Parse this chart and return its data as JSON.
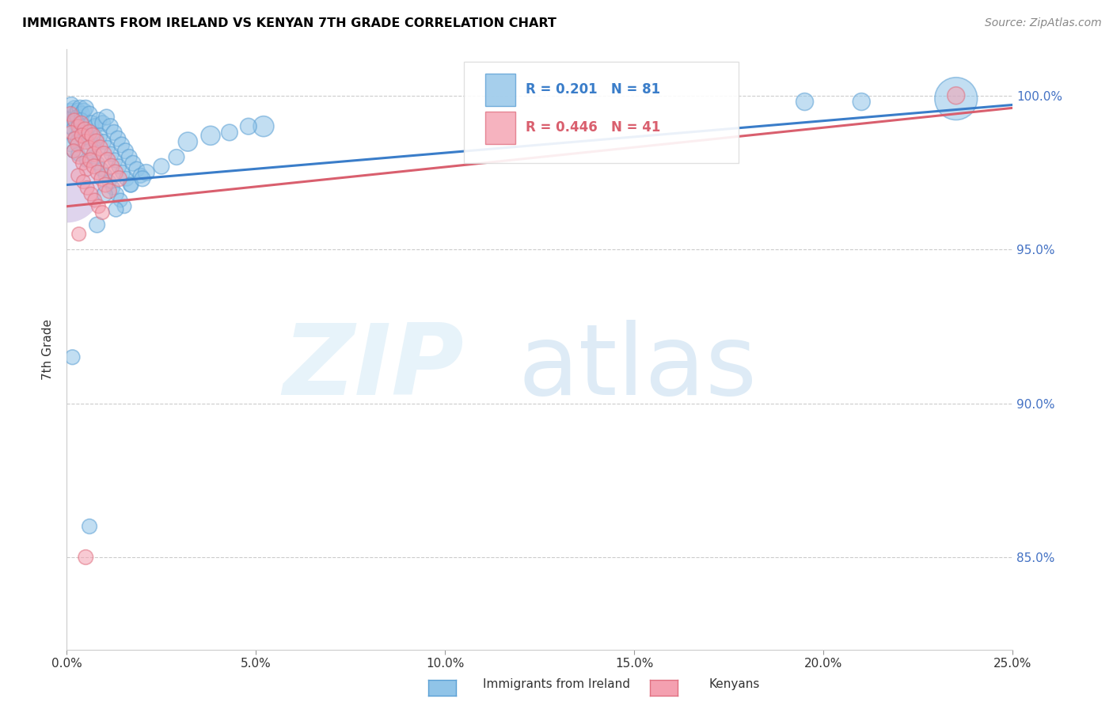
{
  "title": "IMMIGRANTS FROM IRELAND VS KENYAN 7TH GRADE CORRELATION CHART",
  "source": "Source: ZipAtlas.com",
  "ylabel": "7th Grade",
  "legend_blue_label": "Immigrants from Ireland",
  "legend_pink_label": "Kenyans",
  "r_blue": 0.201,
  "n_blue": 81,
  "r_pink": 0.446,
  "n_pink": 41,
  "blue_color": "#90c4e8",
  "pink_color": "#f4a0b0",
  "blue_line_color": "#3a7dc9",
  "pink_line_color": "#d95f6e",
  "blue_edge_color": "#5a9fd4",
  "pink_edge_color": "#e07080",
  "xlim": [
    0.0,
    25.0
  ],
  "ylim": [
    82.0,
    101.5
  ],
  "ytick_values": [
    85.0,
    90.0,
    95.0,
    100.0
  ],
  "xtick_values": [
    0.0,
    5.0,
    10.0,
    15.0,
    20.0,
    25.0
  ],
  "blue_points": [
    [
      0.1,
      99.5
    ],
    [
      0.2,
      99.6
    ],
    [
      0.15,
      99.3
    ],
    [
      0.25,
      99.4
    ],
    [
      0.18,
      99.2
    ],
    [
      0.12,
      99.7
    ],
    [
      0.3,
      99.5
    ],
    [
      0.22,
      99.1
    ],
    [
      0.08,
      99.0
    ],
    [
      0.35,
      99.6
    ],
    [
      0.28,
      99.3
    ],
    [
      0.16,
      98.9
    ],
    [
      0.4,
      99.4
    ],
    [
      0.45,
      99.5
    ],
    [
      0.5,
      99.6
    ],
    [
      0.32,
      98.8
    ],
    [
      0.2,
      98.6
    ],
    [
      0.1,
      98.4
    ],
    [
      0.38,
      99.2
    ],
    [
      0.6,
      99.4
    ],
    [
      0.28,
      98.5
    ],
    [
      0.48,
      99.0
    ],
    [
      0.65,
      99.1
    ],
    [
      0.42,
      98.7
    ],
    [
      0.18,
      98.2
    ],
    [
      0.5,
      98.8
    ],
    [
      0.58,
      98.6
    ],
    [
      0.75,
      99.0
    ],
    [
      0.68,
      98.4
    ],
    [
      0.3,
      98.1
    ],
    [
      0.85,
      99.2
    ],
    [
      0.95,
      99.1
    ],
    [
      0.6,
      98.2
    ],
    [
      0.78,
      98.6
    ],
    [
      0.52,
      97.9
    ],
    [
      1.05,
      99.3
    ],
    [
      0.88,
      98.7
    ],
    [
      0.72,
      98.0
    ],
    [
      1.15,
      99.0
    ],
    [
      0.98,
      98.5
    ],
    [
      0.82,
      97.8
    ],
    [
      1.25,
      98.8
    ],
    [
      1.08,
      98.3
    ],
    [
      0.92,
      97.6
    ],
    [
      1.35,
      98.6
    ],
    [
      1.18,
      98.1
    ],
    [
      1.02,
      97.4
    ],
    [
      1.45,
      98.4
    ],
    [
      1.28,
      97.9
    ],
    [
      1.12,
      97.2
    ],
    [
      1.55,
      98.2
    ],
    [
      1.38,
      97.7
    ],
    [
      1.22,
      97.0
    ],
    [
      1.65,
      98.0
    ],
    [
      1.48,
      97.5
    ],
    [
      1.32,
      96.8
    ],
    [
      1.75,
      97.8
    ],
    [
      1.58,
      97.3
    ],
    [
      1.42,
      96.6
    ],
    [
      1.85,
      97.6
    ],
    [
      1.68,
      97.1
    ],
    [
      1.52,
      96.4
    ],
    [
      1.95,
      97.4
    ],
    [
      3.2,
      98.5
    ],
    [
      3.8,
      98.7
    ],
    [
      5.2,
      99.0
    ],
    [
      0.15,
      91.5
    ],
    [
      2.1,
      97.5
    ],
    [
      0.8,
      95.8
    ],
    [
      1.0,
      96.8
    ],
    [
      1.3,
      96.3
    ],
    [
      1.7,
      97.1
    ],
    [
      2.0,
      97.3
    ],
    [
      2.5,
      97.7
    ],
    [
      2.9,
      98.0
    ],
    [
      4.3,
      98.8
    ],
    [
      4.8,
      99.0
    ],
    [
      19.5,
      99.8
    ],
    [
      23.5,
      99.9
    ],
    [
      0.6,
      86.0
    ],
    [
      21.0,
      99.8
    ]
  ],
  "pink_points": [
    [
      0.1,
      99.4
    ],
    [
      0.2,
      99.2
    ],
    [
      0.3,
      99.0
    ],
    [
      0.12,
      98.8
    ],
    [
      0.38,
      99.1
    ],
    [
      0.22,
      98.6
    ],
    [
      0.28,
      98.4
    ],
    [
      0.48,
      98.9
    ],
    [
      0.4,
      98.7
    ],
    [
      0.18,
      98.2
    ],
    [
      0.5,
      98.5
    ],
    [
      0.6,
      98.8
    ],
    [
      0.32,
      98.0
    ],
    [
      0.68,
      98.7
    ],
    [
      0.42,
      97.8
    ],
    [
      0.58,
      98.3
    ],
    [
      0.52,
      97.6
    ],
    [
      0.78,
      98.5
    ],
    [
      0.72,
      98.1
    ],
    [
      0.3,
      97.4
    ],
    [
      0.88,
      98.3
    ],
    [
      0.62,
      97.9
    ],
    [
      0.44,
      97.2
    ],
    [
      0.98,
      98.1
    ],
    [
      0.72,
      97.7
    ],
    [
      0.54,
      97.0
    ],
    [
      1.08,
      97.9
    ],
    [
      0.82,
      97.5
    ],
    [
      0.64,
      96.8
    ],
    [
      1.18,
      97.7
    ],
    [
      0.92,
      97.3
    ],
    [
      0.74,
      96.6
    ],
    [
      1.28,
      97.5
    ],
    [
      1.02,
      97.1
    ],
    [
      0.84,
      96.4
    ],
    [
      1.38,
      97.3
    ],
    [
      1.12,
      96.9
    ],
    [
      0.94,
      96.2
    ],
    [
      0.32,
      95.5
    ],
    [
      23.5,
      100.0
    ],
    [
      0.5,
      85.0
    ]
  ],
  "blue_sizes": [
    200,
    180,
    160,
    220,
    170,
    200,
    200,
    180,
    180,
    200,
    180,
    160,
    200,
    200,
    200,
    180,
    160,
    160,
    180,
    200,
    180,
    180,
    200,
    180,
    160,
    180,
    180,
    200,
    180,
    160,
    200,
    200,
    180,
    180,
    160,
    200,
    180,
    160,
    200,
    180,
    160,
    200,
    180,
    160,
    200,
    180,
    160,
    200,
    180,
    160,
    200,
    180,
    160,
    200,
    180,
    160,
    200,
    180,
    160,
    200,
    180,
    160,
    180,
    300,
    300,
    350,
    180,
    220,
    200,
    200,
    180,
    180,
    200,
    200,
    200,
    220,
    220,
    250,
    1500,
    180,
    250
  ],
  "pink_sizes": [
    180,
    160,
    160,
    160,
    180,
    160,
    160,
    180,
    180,
    160,
    180,
    200,
    160,
    200,
    160,
    180,
    160,
    200,
    180,
    160,
    200,
    180,
    160,
    200,
    180,
    160,
    200,
    180,
    160,
    200,
    180,
    160,
    200,
    180,
    160,
    200,
    180,
    160,
    160,
    250,
    180
  ],
  "big_blue_x": 0.0,
  "big_blue_y": 97.0,
  "big_blue_size": 4000
}
